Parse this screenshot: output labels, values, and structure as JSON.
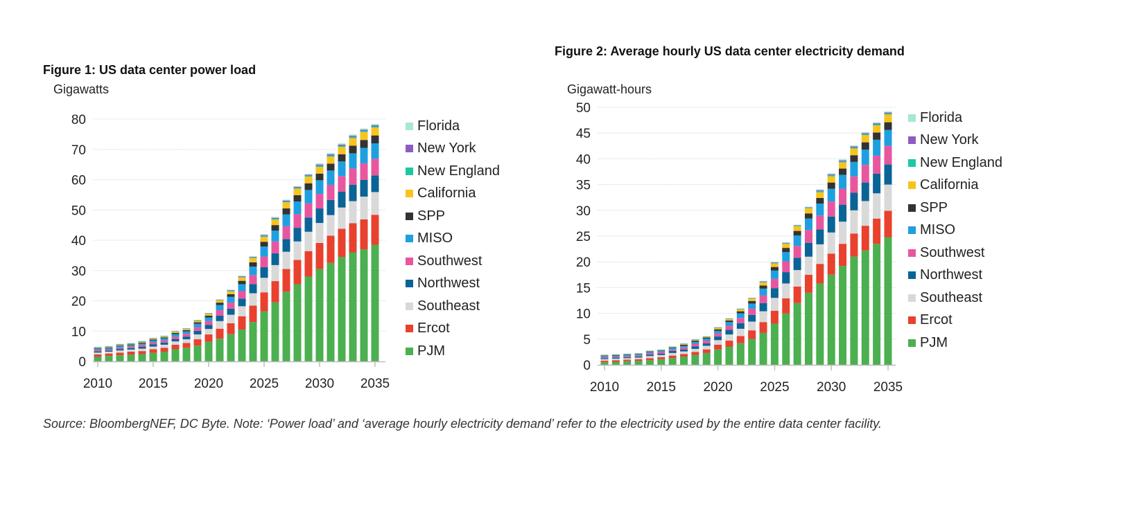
{
  "figures": [
    {
      "title": "Figure 1:  US data center power load",
      "unit": "Gigawatts"
    },
    {
      "title": "Figure 2:  Average hourly US data center electricity demand",
      "unit": "Gigawatt-hours"
    }
  ],
  "source": "Source: BloombergNEF, DC Byte. Note: ‘Power load’ and ‘average hourly electricity demand’ refer to the electricity used by the entire data center facility.",
  "chart_data": [
    {
      "type": "bar",
      "stacked": true,
      "title": "Figure 1:  US data center power load",
      "ylabel": "Gigawatts",
      "xlabel": "",
      "ylim": [
        0,
        80
      ],
      "yticks": [
        0,
        10,
        20,
        30,
        40,
        50,
        60,
        70,
        80
      ],
      "xticks": [
        2010,
        2015,
        2020,
        2025,
        2030,
        2035
      ],
      "legend": "right",
      "grid": true,
      "categories": [
        2010,
        2011,
        2012,
        2013,
        2014,
        2015,
        2016,
        2017,
        2018,
        2019,
        2020,
        2021,
        2022,
        2023,
        2024,
        2025,
        2026,
        2027,
        2028,
        2029,
        2030,
        2031,
        2032,
        2033,
        2034,
        2035
      ],
      "series": [
        {
          "name": "PJM",
          "color": "#4caf50",
          "values": [
            1.5,
            1.8,
            2.0,
            2.2,
            2.4,
            2.8,
            3.2,
            4.0,
            4.5,
            5.2,
            6.5,
            7.5,
            9.0,
            10.5,
            13.0,
            16.5,
            19.5,
            23.0,
            25.5,
            28.0,
            30.5,
            32.5,
            34.5,
            36.0,
            37.0,
            38.5
          ]
        },
        {
          "name": "Ercot",
          "color": "#e8412e",
          "values": [
            0.8,
            0.8,
            0.9,
            1.0,
            1.0,
            1.2,
            1.3,
            1.5,
            1.6,
            2.1,
            2.4,
            3.3,
            3.6,
            4.4,
            5.4,
            6.3,
            7.0,
            7.5,
            8.0,
            8.4,
            8.6,
            9.0,
            9.3,
            9.6,
            9.9,
            9.9
          ]
        },
        {
          "name": "Southeast",
          "color": "#d9d9d9",
          "values": [
            0.6,
            0.6,
            0.7,
            0.7,
            0.8,
            0.9,
            1.0,
            1.1,
            1.2,
            1.6,
            1.8,
            2.5,
            2.8,
            3.3,
            4.1,
            4.8,
            5.3,
            5.7,
            6.1,
            6.4,
            6.6,
            6.8,
            7.0,
            7.3,
            7.5,
            7.5
          ]
        },
        {
          "name": "Northwest",
          "color": "#0a6496",
          "values": [
            0.4,
            0.4,
            0.5,
            0.5,
            0.6,
            0.7,
            0.7,
            0.8,
            0.9,
            1.2,
            1.3,
            1.8,
            2.0,
            2.5,
            3.0,
            3.5,
            3.9,
            4.2,
            4.5,
            4.7,
            4.8,
            5.0,
            5.2,
            5.4,
            5.5,
            5.5
          ]
        },
        {
          "name": "Southwest",
          "color": "#e8569f",
          "values": [
            0.4,
            0.4,
            0.5,
            0.5,
            0.6,
            0.7,
            0.7,
            0.8,
            0.9,
            1.2,
            1.3,
            1.8,
            2.0,
            2.5,
            3.0,
            3.5,
            3.9,
            4.2,
            4.5,
            4.7,
            4.8,
            5.0,
            5.2,
            5.4,
            5.5,
            5.5
          ]
        },
        {
          "name": "MISO",
          "color": "#1ea0e0",
          "values": [
            0.4,
            0.4,
            0.5,
            0.5,
            0.5,
            0.6,
            0.7,
            0.8,
            0.8,
            1.1,
            1.2,
            1.7,
            1.9,
            2.3,
            2.8,
            3.3,
            3.6,
            3.9,
            4.2,
            4.4,
            4.5,
            4.7,
            4.8,
            5.0,
            5.1,
            5.1
          ]
        },
        {
          "name": "SPP",
          "color": "#333333",
          "values": [
            0.2,
            0.2,
            0.2,
            0.2,
            0.3,
            0.3,
            0.3,
            0.4,
            0.4,
            0.5,
            0.6,
            0.8,
            0.9,
            1.1,
            1.4,
            1.6,
            1.8,
            2.0,
            2.1,
            2.2,
            2.2,
            2.3,
            2.4,
            2.5,
            2.6,
            2.6
          ]
        },
        {
          "name": "California",
          "color": "#f9c31f",
          "values": [
            0.2,
            0.2,
            0.2,
            0.2,
            0.3,
            0.3,
            0.3,
            0.4,
            0.4,
            0.5,
            0.6,
            0.8,
            0.9,
            1.1,
            1.4,
            1.6,
            1.8,
            2.0,
            2.1,
            2.2,
            2.2,
            2.3,
            2.4,
            2.5,
            2.6,
            2.6
          ]
        },
        {
          "name": "New England",
          "color": "#1cc8a0",
          "values": [
            0.1,
            0.1,
            0.1,
            0.1,
            0.1,
            0.1,
            0.1,
            0.1,
            0.1,
            0.1,
            0.1,
            0.1,
            0.2,
            0.2,
            0.2,
            0.3,
            0.3,
            0.3,
            0.3,
            0.3,
            0.4,
            0.4,
            0.4,
            0.4,
            0.4,
            0.4
          ]
        },
        {
          "name": "New York",
          "color": "#8e5cc1",
          "values": [
            0.1,
            0.1,
            0.1,
            0.1,
            0.1,
            0.1,
            0.1,
            0.1,
            0.1,
            0.1,
            0.1,
            0.1,
            0.2,
            0.2,
            0.2,
            0.3,
            0.3,
            0.3,
            0.3,
            0.3,
            0.4,
            0.4,
            0.4,
            0.4,
            0.4,
            0.4
          ]
        },
        {
          "name": "Florida",
          "color": "#a8e6d8",
          "values": [
            0.1,
            0.1,
            0.1,
            0.1,
            0.1,
            0.1,
            0.1,
            0.1,
            0.1,
            0.1,
            0.1,
            0.1,
            0.2,
            0.2,
            0.2,
            0.3,
            0.3,
            0.3,
            0.3,
            0.3,
            0.4,
            0.4,
            0.4,
            0.4,
            0.4,
            0.4
          ]
        }
      ]
    },
    {
      "type": "bar",
      "stacked": true,
      "title": "Figure 2:  Average hourly US data center electricity demand",
      "ylabel": "Gigawatt-hours",
      "xlabel": "",
      "ylim": [
        0,
        50
      ],
      "yticks": [
        0,
        5,
        10,
        15,
        20,
        25,
        30,
        35,
        40,
        45,
        50
      ],
      "xticks": [
        2010,
        2015,
        2020,
        2025,
        2030,
        2035
      ],
      "legend": "right",
      "grid": true,
      "categories": [
        2010,
        2011,
        2012,
        2013,
        2014,
        2015,
        2016,
        2017,
        2018,
        2019,
        2020,
        2021,
        2022,
        2023,
        2024,
        2025,
        2026,
        2027,
        2028,
        2029,
        2030,
        2031,
        2032,
        2033,
        2034,
        2035
      ],
      "series": [
        {
          "name": "PJM",
          "color": "#4caf50",
          "values": [
            0.5,
            0.6,
            0.7,
            0.8,
            0.9,
            1.1,
            1.3,
            1.6,
            1.9,
            2.3,
            3.0,
            3.5,
            4.2,
            5.0,
            6.2,
            8.0,
            10.0,
            12.0,
            14.0,
            15.8,
            17.5,
            19.2,
            21.0,
            22.2,
            23.5,
            24.8
          ]
        },
        {
          "name": "Ercot",
          "color": "#e8412e",
          "values": [
            0.3,
            0.3,
            0.3,
            0.3,
            0.4,
            0.4,
            0.5,
            0.5,
            0.6,
            0.7,
            0.9,
            1.2,
            1.4,
            1.7,
            2.1,
            2.5,
            2.9,
            3.2,
            3.5,
            3.8,
            4.1,
            4.3,
            4.5,
            4.8,
            4.9,
            5.1
          ]
        },
        {
          "name": "Southeast",
          "color": "#d9d9d9",
          "values": [
            0.3,
            0.3,
            0.3,
            0.3,
            0.4,
            0.4,
            0.5,
            0.5,
            0.6,
            0.7,
            0.9,
            1.2,
            1.4,
            1.7,
            2.1,
            2.5,
            2.9,
            3.2,
            3.5,
            3.8,
            4.1,
            4.3,
            4.5,
            4.8,
            4.9,
            5.1
          ]
        },
        {
          "name": "Northwest",
          "color": "#0a6496",
          "values": [
            0.2,
            0.2,
            0.2,
            0.2,
            0.3,
            0.3,
            0.4,
            0.4,
            0.5,
            0.5,
            0.7,
            0.9,
            1.1,
            1.3,
            1.6,
            1.9,
            2.2,
            2.4,
            2.7,
            2.9,
            3.1,
            3.3,
            3.4,
            3.6,
            3.8,
            3.9
          ]
        },
        {
          "name": "Southwest",
          "color": "#e8569f",
          "values": [
            0.2,
            0.2,
            0.2,
            0.2,
            0.3,
            0.3,
            0.3,
            0.4,
            0.5,
            0.5,
            0.6,
            0.8,
            1.0,
            1.2,
            1.5,
            1.8,
            2.1,
            2.3,
            2.5,
            2.7,
            2.9,
            3.1,
            3.2,
            3.4,
            3.5,
            3.6
          ]
        },
        {
          "name": "MISO",
          "color": "#1ea0e0",
          "values": [
            0.2,
            0.2,
            0.2,
            0.2,
            0.2,
            0.2,
            0.3,
            0.3,
            0.4,
            0.4,
            0.5,
            0.7,
            0.9,
            1.0,
            1.3,
            1.6,
            1.8,
            2.0,
            2.2,
            2.3,
            2.5,
            2.7,
            2.8,
            3.0,
            3.1,
            3.1
          ]
        },
        {
          "name": "SPP",
          "color": "#333333",
          "values": [
            0.1,
            0.1,
            0.1,
            0.1,
            0.1,
            0.1,
            0.1,
            0.2,
            0.2,
            0.2,
            0.3,
            0.3,
            0.4,
            0.5,
            0.6,
            0.7,
            0.8,
            0.9,
            1.0,
            1.1,
            1.2,
            1.2,
            1.3,
            1.4,
            1.4,
            1.5
          ]
        },
        {
          "name": "California",
          "color": "#f9c31f",
          "values": [
            0.1,
            0.1,
            0.1,
            0.1,
            0.1,
            0.1,
            0.1,
            0.2,
            0.2,
            0.2,
            0.3,
            0.3,
            0.4,
            0.5,
            0.6,
            0.7,
            0.8,
            0.9,
            1.0,
            1.1,
            1.2,
            1.2,
            1.3,
            1.4,
            1.4,
            1.5
          ]
        },
        {
          "name": "New England",
          "color": "#1cc8a0",
          "values": [
            0.03,
            0.03,
            0.03,
            0.03,
            0.03,
            0.03,
            0.03,
            0.03,
            0.03,
            0.03,
            0.05,
            0.05,
            0.05,
            0.05,
            0.1,
            0.1,
            0.1,
            0.1,
            0.1,
            0.2,
            0.2,
            0.2,
            0.2,
            0.2,
            0.2,
            0.2
          ]
        },
        {
          "name": "New York",
          "color": "#8e5cc1",
          "values": [
            0.03,
            0.03,
            0.03,
            0.03,
            0.03,
            0.03,
            0.03,
            0.03,
            0.03,
            0.03,
            0.05,
            0.05,
            0.05,
            0.05,
            0.1,
            0.1,
            0.1,
            0.1,
            0.1,
            0.2,
            0.2,
            0.2,
            0.2,
            0.2,
            0.2,
            0.2
          ]
        },
        {
          "name": "Florida",
          "color": "#a8e6d8",
          "values": [
            0.03,
            0.03,
            0.03,
            0.03,
            0.03,
            0.03,
            0.03,
            0.03,
            0.03,
            0.03,
            0.05,
            0.05,
            0.05,
            0.05,
            0.1,
            0.1,
            0.1,
            0.1,
            0.1,
            0.2,
            0.2,
            0.2,
            0.2,
            0.2,
            0.2,
            0.2
          ]
        }
      ]
    }
  ]
}
